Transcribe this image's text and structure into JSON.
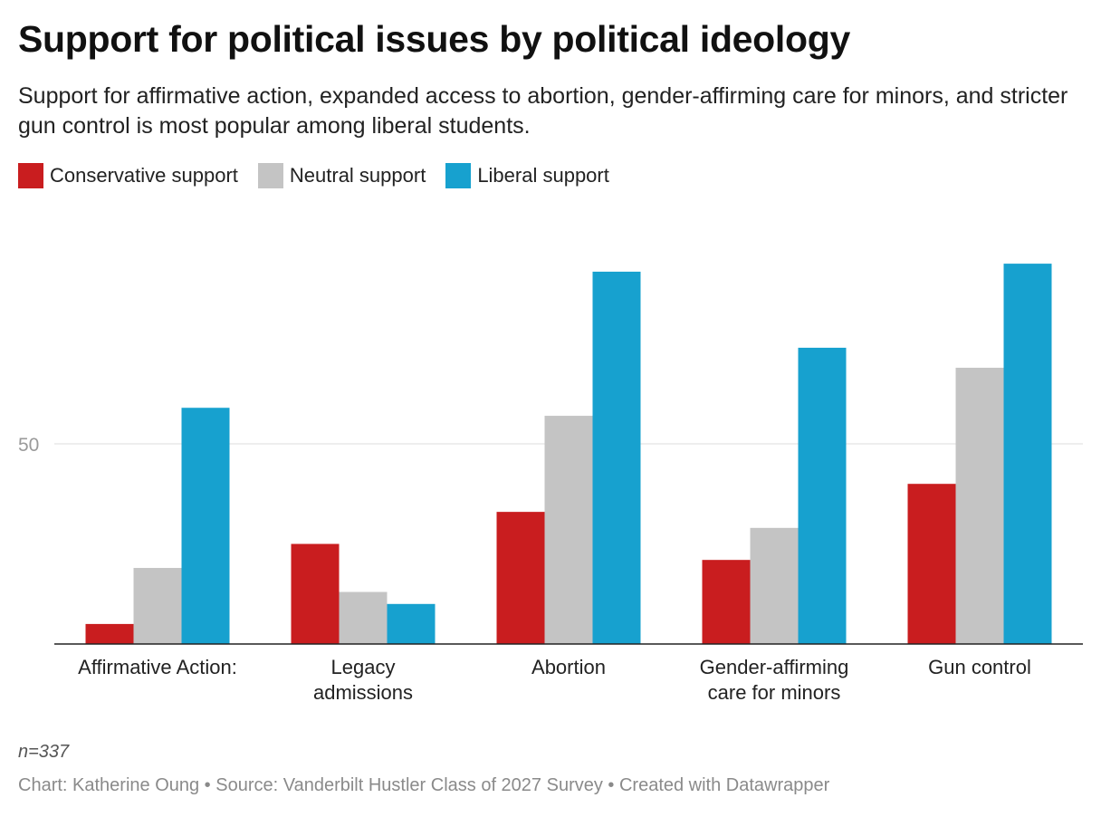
{
  "title": "Support for political issues by political ideology",
  "subtitle": "Support for affirmative action, expanded access to abortion, gender-affirming care for minors, and stricter gun control is most popular among liberal students.",
  "note": "n=337",
  "footer": "Chart: Katherine Oung • Source: Vanderbilt Hustler Class of 2027 Survey • Created with Datawrapper",
  "colors": {
    "conservative": "#c91d1f",
    "neutral": "#c4c4c4",
    "liberal": "#17a1cf",
    "gridline": "#dddddd",
    "baseline": "#222222",
    "tick_label": "#9a9a9a"
  },
  "chart_data": {
    "type": "bar",
    "title": "Support for political issues by political ideology",
    "xlabel": "",
    "ylabel": "",
    "ylim": [
      0,
      96
    ],
    "yticks": [
      50
    ],
    "grid": true,
    "legend_position": "top-left",
    "categories": [
      [
        "Affirmative Action:"
      ],
      [
        "Legacy",
        "admissions"
      ],
      [
        "Abortion"
      ],
      [
        "Gender-affirming",
        "care for minors"
      ],
      [
        "Gun control"
      ]
    ],
    "series": [
      {
        "name": "Conservative support",
        "color": "#c91d1f",
        "values": [
          5,
          25,
          33,
          21,
          40
        ]
      },
      {
        "name": "Neutral support",
        "color": "#c4c4c4",
        "values": [
          19,
          13,
          57,
          29,
          69
        ]
      },
      {
        "name": "Liberal support",
        "color": "#17a1cf",
        "values": [
          59,
          10,
          93,
          74,
          95
        ]
      }
    ]
  }
}
